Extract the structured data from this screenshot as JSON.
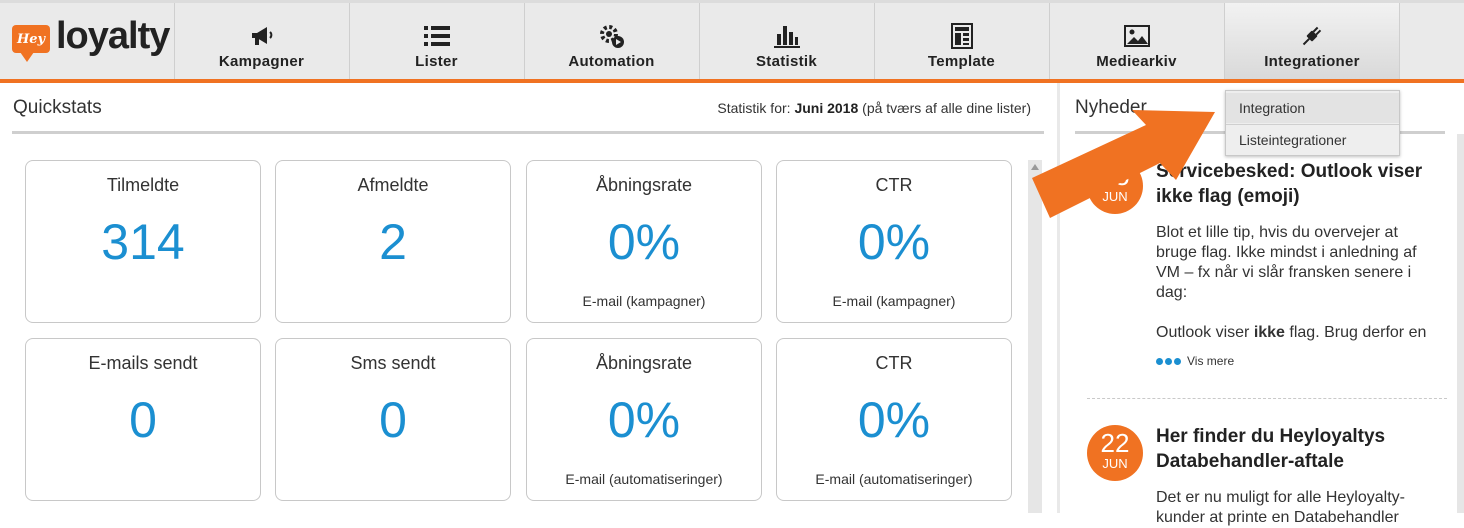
{
  "brand": {
    "badge": "Hey",
    "name": "loyalty",
    "accent": "#f07222",
    "value_color": "#1b8fd1"
  },
  "nav": {
    "items": [
      {
        "label": "Kampagner",
        "icon": "megaphone-icon"
      },
      {
        "label": "Lister",
        "icon": "list-icon"
      },
      {
        "label": "Automation",
        "icon": "gear-play-icon"
      },
      {
        "label": "Statistik",
        "icon": "bar-chart-icon"
      },
      {
        "label": "Template",
        "icon": "template-icon"
      },
      {
        "label": "Mediearkiv",
        "icon": "image-icon"
      },
      {
        "label": "Integrationer",
        "icon": "plug-icon",
        "active": true
      }
    ],
    "dropdown": [
      "Integration",
      "Listeintegrationer"
    ]
  },
  "quickstats": {
    "title": "Quickstats",
    "stat_prefix": "Statistik for:",
    "stat_period": "Juni 2018",
    "stat_suffix": "(på tværs af alle dine lister)",
    "cards": [
      {
        "label": "Tilmeldte",
        "value": "314",
        "sub": ""
      },
      {
        "label": "Afmeldte",
        "value": "2",
        "sub": ""
      },
      {
        "label": "Åbningsrate",
        "value": "0%",
        "sub": "E-mail (kampagner)"
      },
      {
        "label": "CTR",
        "value": "0%",
        "sub": "E-mail (kampagner)"
      },
      {
        "label": "E-mails sendt",
        "value": "0",
        "sub": ""
      },
      {
        "label": "Sms sendt",
        "value": "0",
        "sub": ""
      },
      {
        "label": "Åbningsrate",
        "value": "0%",
        "sub": "E-mail (automatiseringer)"
      },
      {
        "label": "CTR",
        "value": "0%",
        "sub": "E-mail (automatiseringer)"
      }
    ]
  },
  "news": {
    "title": "Nyheder",
    "items": [
      {
        "day": "15",
        "month": "JUN",
        "headline_1": "Servicebesked: Outlook viser",
        "headline_2": "ikke flag (emoji)",
        "body_1": "Blot et lille tip, hvis du overvejer at bruge flag. Ikke mindst i anledning af VM – fx når vi slår fransken senere i dag:",
        "body_2_pre": "Outlook viser ",
        "body_2_bold": "ikke",
        "body_2_post": " flag. Brug derfor en",
        "more": "Vis mere"
      },
      {
        "day": "22",
        "month": "JUN",
        "headline_1": "Her finder du Heyloyaltys",
        "headline_2": "Databehandler-aftale",
        "body_1": "Det er nu muligt for alle Heyloyalty-kunder at printe en Databehandler"
      }
    ]
  }
}
